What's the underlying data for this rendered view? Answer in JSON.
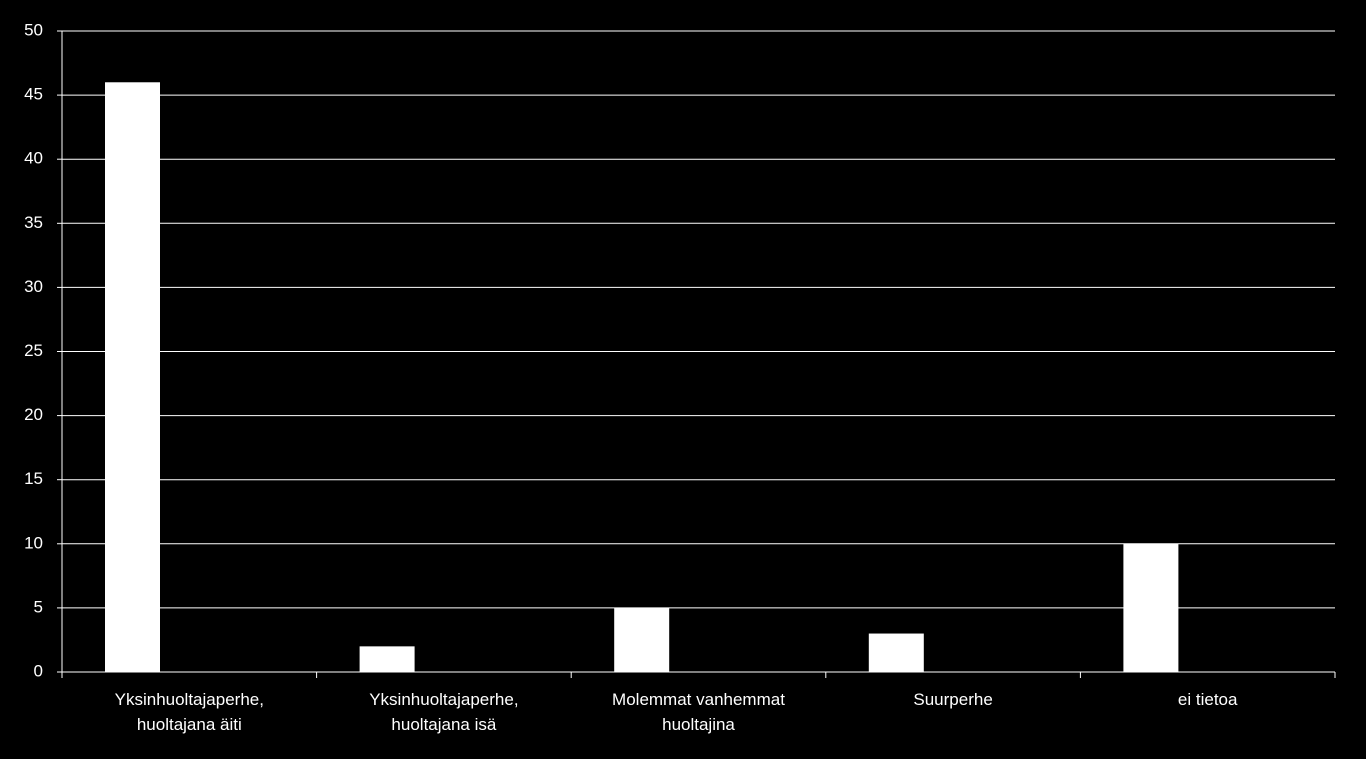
{
  "chart_data": {
    "type": "bar",
    "categories": [
      "Yksinhuoltajaperhe, huoltajana äiti",
      "Yksinhuoltajaperhe, huoltajana isä",
      "Molemmat vanhemmat huoltajina",
      "Suurperhe",
      "ei tietoa"
    ],
    "values": [
      46,
      2,
      5,
      3,
      10
    ],
    "color": "#ffffff",
    "ylim": [
      0,
      50
    ],
    "yticks": [
      0,
      5,
      10,
      15,
      20,
      25,
      30,
      35,
      40,
      45,
      50
    ],
    "grid": true
  }
}
